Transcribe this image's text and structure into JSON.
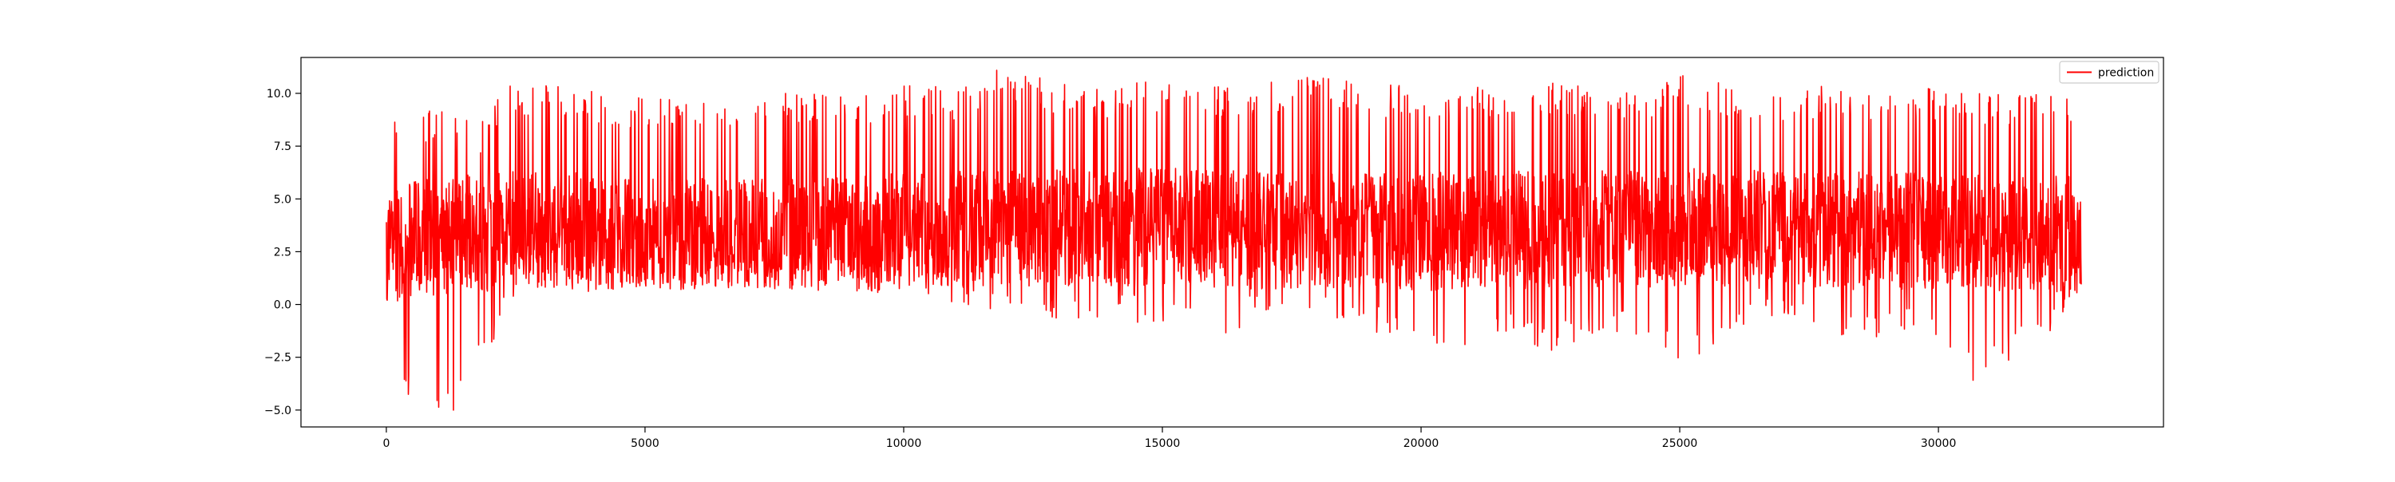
{
  "chart_data": {
    "type": "line",
    "title": "",
    "xlabel": "",
    "ylabel": "",
    "xlim": [
      -1650,
      34350
    ],
    "ylim": [
      -5.8,
      11.7
    ],
    "xticks": [
      0,
      5000,
      10000,
      15000,
      20000,
      25000,
      30000
    ],
    "xtick_labels": [
      "0",
      "5000",
      "10000",
      "15000",
      "20000",
      "25000",
      "30000"
    ],
    "yticks": [
      -5.0,
      -2.5,
      0.0,
      2.5,
      5.0,
      7.5,
      10.0
    ],
    "ytick_labels": [
      "−5.0",
      "−2.5",
      "0.0",
      "2.5",
      "5.0",
      "7.5",
      "10.0"
    ],
    "grid": false,
    "legend_position": "upper-right",
    "series": [
      {
        "name": "prediction",
        "color": "#ff0000",
        "n_points": 32768,
        "x_range": [
          0,
          32768
        ],
        "note": "dense oscillating series; approximate envelope values shown",
        "x": [
          0,
          200,
          500,
          800,
          1100,
          1500,
          1900,
          2300,
          3000,
          4000,
          5000,
          6000,
          7000,
          8000,
          9000,
          10000,
          11000,
          11900,
          13000,
          14000,
          15000,
          16000,
          17000,
          18000,
          19000,
          19700,
          20500,
          21500,
          22500,
          23500,
          24500,
          25000,
          26000,
          27000,
          28000,
          29000,
          30000,
          30700,
          31500,
          32000,
          32768
        ],
        "y_max": [
          9.5,
          9.0,
          9.2,
          9.3,
          9.5,
          9.3,
          8.6,
          10.4,
          10.5,
          10.1,
          9.9,
          10.0,
          9.8,
          10.2,
          10.0,
          10.5,
          10.3,
          11.2,
          10.5,
          10.4,
          10.6,
          10.4,
          10.5,
          11.0,
          10.3,
          10.5,
          10.3,
          10.4,
          10.6,
          10.5,
          10.3,
          11.0,
          10.4,
          10.3,
          10.4,
          10.2,
          10.3,
          10.0,
          10.1,
          10.2,
          9.5
        ],
        "y_min": [
          -4.0,
          -4.2,
          -4.5,
          -3.8,
          -5.7,
          -4.3,
          -2.5,
          -0.6,
          0.3,
          0.6,
          0.7,
          0.7,
          0.8,
          0.7,
          0.6,
          0.4,
          0.0,
          -0.6,
          -1.3,
          -0.8,
          -1.0,
          -1.7,
          -0.5,
          -0.9,
          -1.2,
          -2.0,
          -2.9,
          -1.5,
          -2.2,
          -1.4,
          -1.9,
          -3.0,
          -1.3,
          -0.8,
          -1.9,
          -1.6,
          -1.5,
          -3.7,
          -2.4,
          -1.8,
          0.3
        ],
        "y_center": [
          2.0,
          2.5,
          3.0,
          3.0,
          3.0,
          3.2,
          3.0,
          3.5,
          3.3,
          3.2,
          3.0,
          3.0,
          3.0,
          3.1,
          3.1,
          3.3,
          3.4,
          3.5,
          3.4,
          3.4,
          3.5,
          3.4,
          3.3,
          3.4,
          3.3,
          3.2,
          3.3,
          3.4,
          3.3,
          3.4,
          3.4,
          3.5,
          3.4,
          3.3,
          3.3,
          3.3,
          3.3,
          3.2,
          3.2,
          3.2,
          3.0
        ]
      }
    ]
  }
}
